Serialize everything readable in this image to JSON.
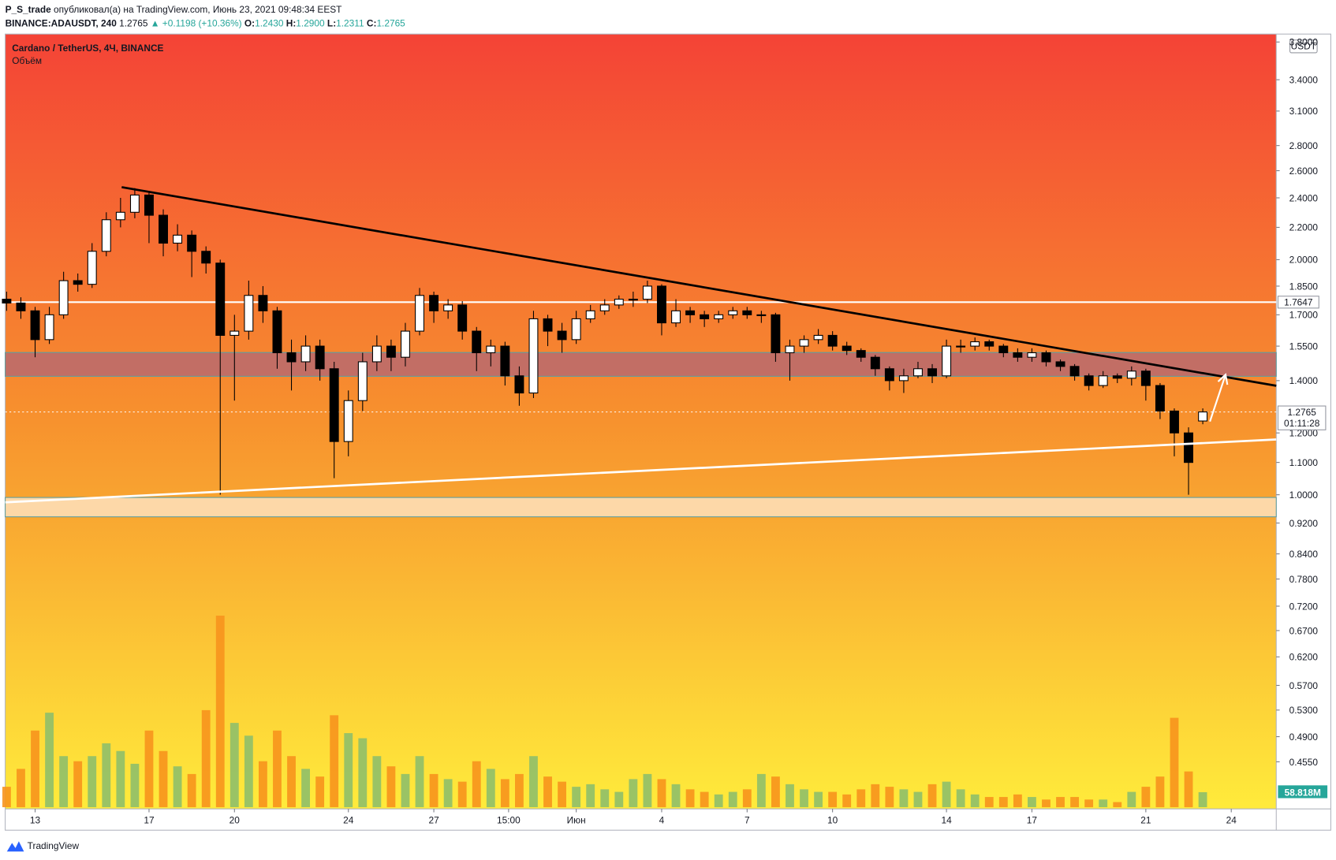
{
  "chart_data": {
    "type": "candlestick",
    "title": "Cardano / TetherUS, 4Ч, BINANCE",
    "subtitle": "Объём",
    "header": {
      "author": "P_S_trade",
      "published": "опубликовал(а) на TradingView.com, Июнь 23, 2021 09:48:34 EEST",
      "symbol": "BINANCE:ADAUSDT, 240",
      "last": "1.2765",
      "change": "▲ +0.1198 (+10.36%)",
      "ohlc": [
        "O:",
        "1.2430",
        "H:",
        "1.2900",
        "L:",
        "1.2311",
        "C:",
        "1.2765"
      ]
    },
    "currency": "USDT",
    "footer": "TradingView",
    "log_y": true,
    "xlim": [
      11.95,
      56.58
    ],
    "xticks": [
      {
        "value": 13,
        "label": "13"
      },
      {
        "value": 17,
        "label": "17"
      },
      {
        "value": 20,
        "label": "20"
      },
      {
        "value": 24,
        "label": "24"
      },
      {
        "value": 27,
        "label": "27"
      },
      {
        "value": 29.625,
        "label": "15:00"
      },
      {
        "value": 32,
        "label": "Июн"
      },
      {
        "value": 35,
        "label": "4"
      },
      {
        "value": 38,
        "label": "7"
      },
      {
        "value": 41,
        "label": "10"
      },
      {
        "value": 45,
        "label": "14"
      },
      {
        "value": 48,
        "label": "17"
      },
      {
        "value": 52,
        "label": "21"
      },
      {
        "value": 55,
        "label": "24"
      }
    ],
    "ylim": [
      0.396,
      3.89
    ],
    "yticks": [
      {
        "value": 3.8,
        "label": "3.8000"
      },
      {
        "value": 3.4,
        "label": "3.4000"
      },
      {
        "value": 3.1,
        "label": "3.1000"
      },
      {
        "value": 2.8,
        "label": "2.8000"
      },
      {
        "value": 2.6,
        "label": "2.6000"
      },
      {
        "value": 2.4,
        "label": "2.4000"
      },
      {
        "value": 2.2,
        "label": "2.2000"
      },
      {
        "value": 2.0,
        "label": "2.0000"
      },
      {
        "value": 1.85,
        "label": "1.8500"
      },
      {
        "value": 1.7,
        "label": "1.7000"
      },
      {
        "value": 1.55,
        "label": "1.5500"
      },
      {
        "value": 1.4,
        "label": "1.4000"
      },
      {
        "value": 1.2,
        "label": "1.2000"
      },
      {
        "value": 1.1,
        "label": "1.1000"
      },
      {
        "value": 1.0,
        "label": "1.0000"
      },
      {
        "value": 0.92,
        "label": "0.9200"
      },
      {
        "value": 0.84,
        "label": "0.8400"
      },
      {
        "value": 0.78,
        "label": "0.7800"
      },
      {
        "value": 0.72,
        "label": "0.7200"
      },
      {
        "value": 0.67,
        "label": "0.6700"
      },
      {
        "value": 0.62,
        "label": "0.6200"
      },
      {
        "value": 0.57,
        "label": "0.5700"
      },
      {
        "value": 0.53,
        "label": "0.5300"
      },
      {
        "value": 0.49,
        "label": "0.4900"
      },
      {
        "value": 0.455,
        "label": "0.4550"
      }
    ],
    "up_color": "#ffffff",
    "down_color": "#000000",
    "volume_up_color": "#8fbf6a",
    "volume_down_color": "#f7941d",
    "volume_lim": [
      0,
      1000
    ],
    "x": [
      12,
      12.5,
      13,
      13.5,
      14,
      14.5,
      15,
      15.5,
      16,
      16.5,
      17,
      17.5,
      18,
      18.5,
      19,
      19.5,
      20,
      20.5,
      21,
      21.5,
      22,
      22.5,
      23,
      23.5,
      24,
      24.5,
      25,
      25.5,
      26,
      26.5,
      27,
      27.5,
      28,
      28.5,
      29,
      29.5,
      30,
      30.5,
      31,
      31.5,
      32,
      32.5,
      33,
      33.5,
      34,
      34.5,
      35,
      35.5,
      36,
      36.5,
      37,
      37.5,
      38,
      38.5,
      39,
      39.5,
      40,
      40.5,
      41,
      41.5,
      42,
      42.5,
      43,
      43.5,
      44,
      44.5,
      45,
      45.5,
      46,
      46.5,
      47,
      47.5,
      48,
      48.5,
      49,
      49.5,
      50,
      50.5,
      51,
      51.5,
      52,
      52.5,
      53,
      53.5,
      54
    ],
    "open": [
      1.78,
      1.76,
      1.72,
      1.58,
      1.7,
      1.88,
      1.86,
      2.05,
      2.25,
      2.3,
      2.42,
      2.28,
      2.1,
      2.15,
      2.05,
      1.98,
      1.6,
      1.62,
      1.8,
      1.72,
      1.52,
      1.48,
      1.55,
      1.45,
      1.17,
      1.32,
      1.48,
      1.55,
      1.5,
      1.62,
      1.8,
      1.72,
      1.75,
      1.62,
      1.52,
      1.55,
      1.42,
      1.35,
      1.68,
      1.62,
      1.58,
      1.68,
      1.72,
      1.75,
      1.78,
      1.78,
      1.85,
      1.66,
      1.72,
      1.7,
      1.68,
      1.7,
      1.72,
      1.7,
      1.7,
      1.52,
      1.55,
      1.58,
      1.6,
      1.55,
      1.53,
      1.5,
      1.45,
      1.4,
      1.42,
      1.45,
      1.42,
      1.55,
      1.55,
      1.57,
      1.55,
      1.52,
      1.5,
      1.52,
      1.48,
      1.46,
      1.42,
      1.38,
      1.42,
      1.41,
      1.44,
      1.38,
      1.28,
      1.2,
      1.243
    ],
    "high": [
      1.82,
      1.79,
      1.74,
      1.74,
      1.93,
      1.92,
      2.1,
      2.3,
      2.4,
      2.47,
      2.45,
      2.32,
      2.22,
      2.18,
      2.08,
      2.0,
      1.7,
      1.88,
      1.85,
      1.74,
      1.58,
      1.6,
      1.58,
      1.48,
      1.36,
      1.52,
      1.6,
      1.58,
      1.66,
      1.84,
      1.82,
      1.78,
      1.77,
      1.64,
      1.58,
      1.57,
      1.46,
      1.72,
      1.7,
      1.66,
      1.72,
      1.75,
      1.78,
      1.8,
      1.82,
      1.88,
      1.86,
      1.78,
      1.74,
      1.72,
      1.72,
      1.74,
      1.74,
      1.72,
      1.71,
      1.58,
      1.6,
      1.63,
      1.62,
      1.57,
      1.54,
      1.51,
      1.46,
      1.45,
      1.48,
      1.47,
      1.58,
      1.58,
      1.59,
      1.58,
      1.56,
      1.54,
      1.54,
      1.53,
      1.49,
      1.47,
      1.43,
      1.44,
      1.43,
      1.46,
      1.45,
      1.39,
      1.29,
      1.22,
      1.29
    ],
    "low": [
      1.72,
      1.68,
      1.5,
      1.56,
      1.68,
      1.82,
      1.84,
      2.02,
      2.2,
      2.26,
      2.1,
      2.02,
      2.05,
      1.9,
      1.92,
      1.0,
      1.32,
      1.58,
      1.66,
      1.45,
      1.36,
      1.44,
      1.4,
      1.05,
      1.12,
      1.28,
      1.44,
      1.44,
      1.46,
      1.6,
      1.66,
      1.68,
      1.58,
      1.44,
      1.46,
      1.38,
      1.3,
      1.33,
      1.55,
      1.52,
      1.56,
      1.66,
      1.7,
      1.73,
      1.74,
      1.76,
      1.6,
      1.64,
      1.66,
      1.64,
      1.66,
      1.68,
      1.68,
      1.66,
      1.48,
      1.4,
      1.52,
      1.56,
      1.53,
      1.51,
      1.48,
      1.42,
      1.36,
      1.35,
      1.41,
      1.39,
      1.41,
      1.52,
      1.53,
      1.53,
      1.5,
      1.48,
      1.48,
      1.46,
      1.44,
      1.4,
      1.36,
      1.37,
      1.39,
      1.38,
      1.32,
      1.25,
      1.12,
      1.0,
      1.2311
    ],
    "close": [
      1.76,
      1.72,
      1.58,
      1.7,
      1.88,
      1.86,
      2.05,
      2.25,
      2.3,
      2.42,
      2.28,
      2.1,
      2.15,
      2.05,
      1.98,
      1.6,
      1.62,
      1.8,
      1.72,
      1.52,
      1.48,
      1.55,
      1.45,
      1.17,
      1.32,
      1.48,
      1.55,
      1.5,
      1.62,
      1.8,
      1.72,
      1.75,
      1.62,
      1.52,
      1.55,
      1.42,
      1.35,
      1.68,
      1.62,
      1.58,
      1.68,
      1.72,
      1.75,
      1.78,
      1.78,
      1.85,
      1.66,
      1.72,
      1.7,
      1.68,
      1.7,
      1.72,
      1.7,
      1.7,
      1.52,
      1.55,
      1.58,
      1.6,
      1.55,
      1.53,
      1.5,
      1.45,
      1.4,
      1.42,
      1.45,
      1.42,
      1.55,
      1.55,
      1.57,
      1.55,
      1.52,
      1.5,
      1.52,
      1.48,
      1.46,
      1.42,
      1.38,
      1.42,
      1.41,
      1.44,
      1.38,
      1.28,
      1.2,
      1.1,
      1.2765
    ],
    "volume": [
      80,
      150,
      300,
      370,
      200,
      180,
      200,
      250,
      220,
      170,
      300,
      220,
      160,
      130,
      380,
      750,
      330,
      280,
      180,
      300,
      200,
      150,
      120,
      360,
      290,
      270,
      200,
      160,
      130,
      200,
      130,
      110,
      100,
      180,
      150,
      110,
      130,
      200,
      120,
      100,
      80,
      90,
      70,
      60,
      110,
      130,
      110,
      90,
      70,
      60,
      50,
      60,
      70,
      130,
      120,
      90,
      70,
      60,
      60,
      50,
      70,
      90,
      80,
      70,
      60,
      90,
      100,
      70,
      50,
      40,
      40,
      50,
      40,
      30,
      40,
      40,
      30,
      30,
      20,
      60,
      80,
      120,
      350,
      140,
      58.818
    ],
    "volume_label": {
      "value": 58.818,
      "label": "58.818M"
    },
    "last_price_label": {
      "value": 1.2765,
      "label": "1.2765"
    },
    "countdown": "01:11:28",
    "annotations": {
      "resistance_line": {
        "value": 1.7647,
        "label": "1.7647",
        "color": "#ffffff"
      },
      "zone_upper": {
        "from": 1.418,
        "to": 1.521,
        "color": "#b86a6e"
      },
      "zone_lower": {
        "from": 0.937,
        "to": 0.992,
        "color": "#fdd8a8"
      },
      "trend_down": {
        "x": [
          16.04,
          56.58
        ],
        "y": [
          2.477,
          1.379
        ],
        "color": "#000000"
      },
      "trend_up": {
        "x": [
          11.95,
          56.58
        ],
        "y": [
          0.978,
          1.177
        ],
        "color": "#ffffff"
      },
      "arrow": {
        "x": [
          54.25,
          54.8
        ],
        "y": [
          1.241,
          1.425
        ],
        "color": "#ffffff"
      }
    }
  }
}
